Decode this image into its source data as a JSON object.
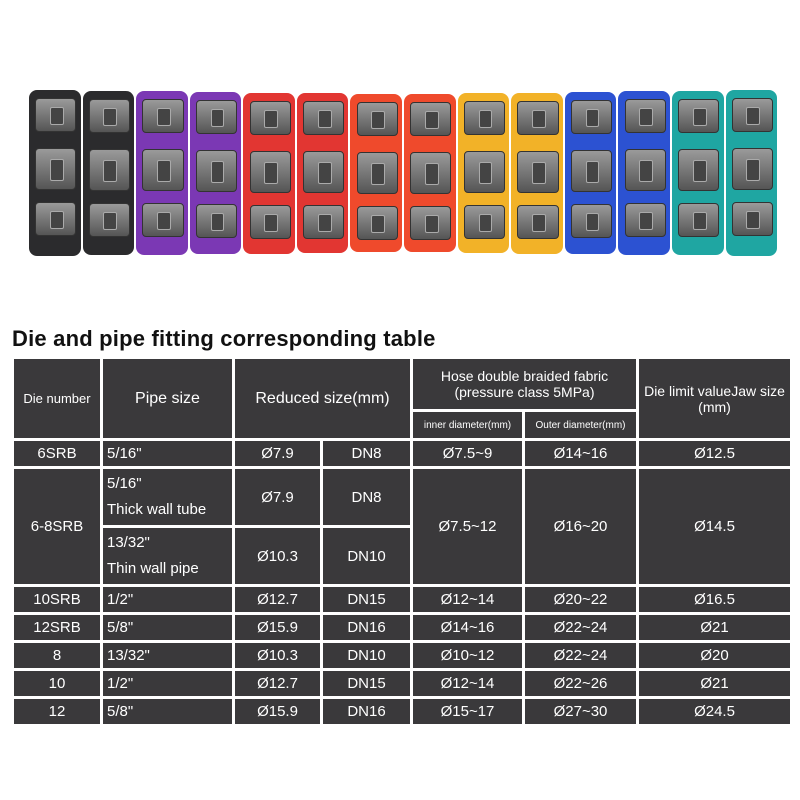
{
  "die_colors": [
    "#2b2b2d",
    "#2b2b2d",
    "#7b38b4",
    "#7b38b4",
    "#e23632",
    "#e23632",
    "#ef4a2c",
    "#ef4a2c",
    "#f2b228",
    "#f2b228",
    "#2c52d2",
    "#2c52d2",
    "#1fa6a2",
    "#1fa6a2"
  ],
  "title": "Die and pipe fitting corresponding table",
  "header": {
    "die_number": "Die number",
    "pipe_size": "Pipe size",
    "reduced_size": "Reduced size(mm)",
    "hose_line1": "Hose double braided fabric",
    "hose_line2": "(pressure class 5MPa)",
    "inner": "inner diameter(mm)",
    "outer": "Outer diameter(mm)",
    "die_limit_line1": "Die limit valueJaw size",
    "die_limit_line2": "(mm)"
  },
  "group": {
    "die": "6-8SRB",
    "inner": "Ø7.5~12",
    "outer": "Ø16~20",
    "limit": "Ø14.5",
    "sub": [
      {
        "pipe1": "5/16\"",
        "pipe2": "Thick wall tube",
        "reduced": "Ø7.9",
        "dn": "DN8"
      },
      {
        "pipe1": "13/32\"",
        "pipe2": "Thin wall pipe",
        "reduced": "Ø10.3",
        "dn": "DN10"
      }
    ]
  },
  "rows": [
    {
      "die": "6SRB",
      "pipe": "5/16\"",
      "reduced": "Ø7.9",
      "dn": "DN8",
      "inner": "Ø7.5~9",
      "outer": "Ø14~16",
      "limit": "Ø12.5"
    },
    {
      "die": "10SRB",
      "pipe": "1/2\"",
      "reduced": "Ø12.7",
      "dn": "DN15",
      "inner": "Ø12~14",
      "outer": "Ø20~22",
      "limit": "Ø16.5"
    },
    {
      "die": "12SRB",
      "pipe": "5/8\"",
      "reduced": "Ø15.9",
      "dn": "DN16",
      "inner": "Ø14~16",
      "outer": "Ø22~24",
      "limit": "Ø21"
    },
    {
      "die": "8",
      "pipe": "13/32\"",
      "reduced": "Ø10.3",
      "dn": "DN10",
      "inner": "Ø10~12",
      "outer": "Ø22~24",
      "limit": "Ø20"
    },
    {
      "die": "10",
      "pipe": "1/2\"",
      "reduced": "Ø12.7",
      "dn": "DN15",
      "inner": "Ø12~14",
      "outer": "Ø22~26",
      "limit": "Ø21"
    },
    {
      "die": "12",
      "pipe": "5/8\"",
      "reduced": "Ø15.9",
      "dn": "DN16",
      "inner": "Ø15~17",
      "outer": "Ø27~30",
      "limit": "Ø24.5"
    }
  ]
}
